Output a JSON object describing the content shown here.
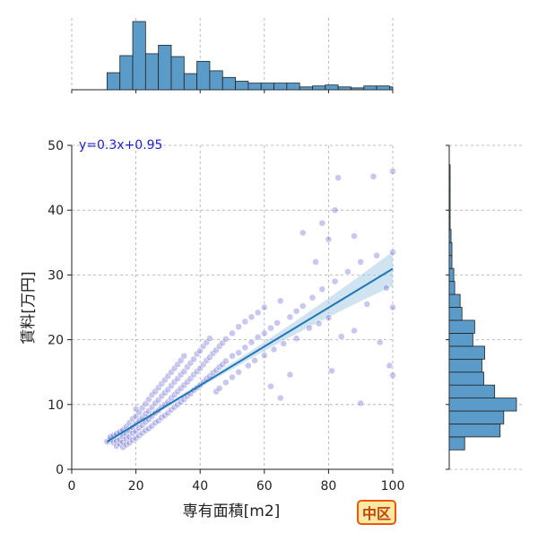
{
  "region_badge": "中区",
  "colors": {
    "scatter": "#3a3ac4",
    "fit_line": "#1f77b4",
    "ci_band": "#a9cce3",
    "hist": "#5b9bc9",
    "equation": "#1f1fd6"
  },
  "chart_data": {
    "type": "scatter",
    "xlabel": "専有面積[m2]",
    "ylabel": "賃料[万円]",
    "xlim": [
      0,
      100
    ],
    "ylim": [
      0,
      50
    ],
    "x_ticks": [
      0,
      20,
      40,
      60,
      80,
      100
    ],
    "y_ticks": [
      0,
      10,
      20,
      30,
      40,
      50
    ],
    "x_tick_labels": [
      "0",
      "20",
      "40",
      "60",
      "80",
      "100"
    ],
    "y_tick_labels": [
      "0",
      "10",
      "20",
      "30",
      "40",
      "50"
    ],
    "grid": true,
    "annotation": "y=0.3x+0.95",
    "regression": {
      "slope": 0.3,
      "intercept": 0.95,
      "x_range": [
        11,
        100
      ]
    },
    "points": [
      [
        11,
        4.3
      ],
      [
        12,
        4.6
      ],
      [
        12,
        5.0
      ],
      [
        13,
        4.1
      ],
      [
        13,
        5.2
      ],
      [
        14,
        3.6
      ],
      [
        14,
        4.4
      ],
      [
        14,
        5.5
      ],
      [
        15,
        3.9
      ],
      [
        15,
        4.6
      ],
      [
        15,
        5.8
      ],
      [
        16,
        3.4
      ],
      [
        16,
        4.2
      ],
      [
        16,
        5.1
      ],
      [
        16,
        6.1
      ],
      [
        17,
        3.8
      ],
      [
        17,
        4.7
      ],
      [
        17,
        5.5
      ],
      [
        17,
        6.6
      ],
      [
        18,
        4.1
      ],
      [
        18,
        5.0
      ],
      [
        18,
        6.0
      ],
      [
        18,
        7.2
      ],
      [
        19,
        4.5
      ],
      [
        19,
        5.6
      ],
      [
        19,
        6.5
      ],
      [
        19,
        7.8
      ],
      [
        20,
        4.8
      ],
      [
        20,
        5.9
      ],
      [
        20,
        7.0
      ],
      [
        20,
        8.2
      ],
      [
        20,
        9.3
      ],
      [
        21,
        5.2
      ],
      [
        21,
        6.4
      ],
      [
        21,
        7.5
      ],
      [
        21,
        8.8
      ],
      [
        22,
        5.6
      ],
      [
        22,
        6.8
      ],
      [
        22,
        8.0
      ],
      [
        22,
        9.5
      ],
      [
        23,
        6.0
      ],
      [
        23,
        7.3
      ],
      [
        23,
        8.6
      ],
      [
        23,
        10.1
      ],
      [
        24,
        6.3
      ],
      [
        24,
        7.7
      ],
      [
        24,
        9.0
      ],
      [
        24,
        10.8
      ],
      [
        25,
        6.7
      ],
      [
        25,
        8.2
      ],
      [
        25,
        9.6
      ],
      [
        25,
        11.5
      ],
      [
        26,
        7.2
      ],
      [
        26,
        8.7
      ],
      [
        26,
        10.2
      ],
      [
        26,
        12.0
      ],
      [
        27,
        7.5
      ],
      [
        27,
        9.1
      ],
      [
        27,
        10.7
      ],
      [
        27,
        12.6
      ],
      [
        28,
        8.0
      ],
      [
        28,
        9.6
      ],
      [
        28,
        11.3
      ],
      [
        28,
        13.2
      ],
      [
        29,
        8.3
      ],
      [
        29,
        10.0
      ],
      [
        29,
        11.8
      ],
      [
        29,
        13.8
      ],
      [
        30,
        8.7
      ],
      [
        30,
        10.4
      ],
      [
        30,
        12.3
      ],
      [
        30,
        14.4
      ],
      [
        31,
        9.2
      ],
      [
        31,
        11.0
      ],
      [
        31,
        12.9
      ],
      [
        31,
        15.0
      ],
      [
        32,
        9.6
      ],
      [
        32,
        11.5
      ],
      [
        32,
        13.5
      ],
      [
        32,
        15.6
      ],
      [
        33,
        10.0
      ],
      [
        33,
        12.0
      ],
      [
        33,
        14.0
      ],
      [
        33,
        16.2
      ],
      [
        34,
        10.4
      ],
      [
        34,
        12.5
      ],
      [
        34,
        14.6
      ],
      [
        34,
        16.8
      ],
      [
        35,
        10.8
      ],
      [
        35,
        13.0
      ],
      [
        35,
        15.1
      ],
      [
        35,
        17.5
      ],
      [
        36,
        11.3
      ],
      [
        36,
        13.5
      ],
      [
        36,
        15.8
      ],
      [
        37,
        11.7
      ],
      [
        37,
        14.0
      ],
      [
        37,
        16.4
      ],
      [
        38,
        12.2
      ],
      [
        38,
        14.6
      ],
      [
        38,
        17.0
      ],
      [
        39,
        12.6
      ],
      [
        39,
        15.1
      ],
      [
        39,
        17.8
      ],
      [
        40,
        13.0
      ],
      [
        40,
        15.6
      ],
      [
        40,
        18.3
      ],
      [
        41,
        13.5
      ],
      [
        41,
        16.2
      ],
      [
        41,
        19.0
      ],
      [
        42,
        14.0
      ],
      [
        42,
        16.8
      ],
      [
        42,
        19.6
      ],
      [
        43,
        14.4
      ],
      [
        43,
        17.3
      ],
      [
        43,
        20.2
      ],
      [
        44,
        14.9
      ],
      [
        44,
        17.9
      ],
      [
        45,
        15.3
      ],
      [
        45,
        18.4
      ],
      [
        45,
        12.0
      ],
      [
        46,
        15.8
      ],
      [
        46,
        19.0
      ],
      [
        46,
        12.5
      ],
      [
        47,
        16.2
      ],
      [
        47,
        19.5
      ],
      [
        48,
        16.7
      ],
      [
        48,
        20.1
      ],
      [
        48,
        13.4
      ],
      [
        50,
        17.5
      ],
      [
        50,
        21.0
      ],
      [
        50,
        14.2
      ],
      [
        52,
        18.0
      ],
      [
        52,
        22.0
      ],
      [
        52,
        15.0
      ],
      [
        54,
        18.8
      ],
      [
        54,
        22.8
      ],
      [
        55,
        16.0
      ],
      [
        56,
        19.6
      ],
      [
        56,
        23.5
      ],
      [
        57,
        16.8
      ],
      [
        58,
        20.4
      ],
      [
        58,
        24.2
      ],
      [
        60,
        21.0
      ],
      [
        60,
        25.0
      ],
      [
        60,
        17.6
      ],
      [
        62,
        21.8
      ],
      [
        62,
        12.8
      ],
      [
        63,
        18.5
      ],
      [
        64,
        22.6
      ],
      [
        65,
        26.0
      ],
      [
        65,
        11.0
      ],
      [
        66,
        19.4
      ],
      [
        68,
        23.5
      ],
      [
        68,
        14.6
      ],
      [
        70,
        24.4
      ],
      [
        70,
        20.2
      ],
      [
        72,
        25.2
      ],
      [
        72,
        36.5
      ],
      [
        74,
        21.8
      ],
      [
        75,
        26.5
      ],
      [
        76,
        32.0
      ],
      [
        77,
        22.5
      ],
      [
        78,
        27.8
      ],
      [
        78,
        38.0
      ],
      [
        80,
        23.4
      ],
      [
        80,
        35.5
      ],
      [
        81,
        15.2
      ],
      [
        82,
        29.0
      ],
      [
        82,
        40.0
      ],
      [
        83,
        45.0
      ],
      [
        84,
        20.5
      ],
      [
        86,
        30.5
      ],
      [
        88,
        21.4
      ],
      [
        88,
        36.0
      ],
      [
        90,
        10.2
      ],
      [
        90,
        32.0
      ],
      [
        92,
        25.5
      ],
      [
        94,
        45.2
      ],
      [
        95,
        33.0
      ],
      [
        96,
        19.6
      ],
      [
        98,
        28.0
      ],
      [
        99,
        16.0
      ],
      [
        100,
        46.0
      ],
      [
        100,
        25.0
      ],
      [
        100,
        14.5
      ],
      [
        100,
        33.5
      ]
    ],
    "top_histogram": {
      "bin_edges": [
        11,
        15,
        19,
        23,
        27,
        31,
        35,
        39,
        43,
        47,
        51,
        55,
        59,
        63,
        67,
        71,
        75,
        79,
        83,
        87,
        91,
        95,
        99,
        100
      ],
      "counts": [
        18,
        36,
        72,
        38,
        47,
        35,
        17,
        30,
        20,
        13,
        9,
        7,
        7,
        7,
        7,
        3,
        4,
        5,
        3,
        2,
        4,
        4,
        3
      ]
    },
    "right_histogram": {
      "bin_edges": [
        3,
        5,
        7,
        9,
        11,
        13,
        15,
        17,
        19,
        21,
        23,
        25,
        27,
        29,
        31,
        33,
        35,
        37,
        39,
        41,
        43,
        45,
        47
      ],
      "counts": [
        17,
        56,
        60,
        74,
        50,
        38,
        36,
        39,
        26,
        28,
        14,
        12,
        6,
        5,
        3,
        3,
        2,
        1,
        1,
        1,
        1,
        1
      ]
    }
  }
}
